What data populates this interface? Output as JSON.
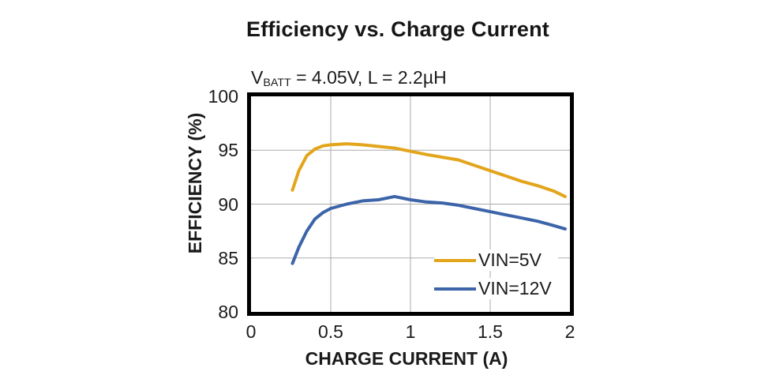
{
  "page": {
    "title": "Efficiency vs. Charge Current",
    "subtitle": {
      "base": "V",
      "sub": "BATT",
      "rest": " = 4.05V, L = 2.2µH"
    }
  },
  "colors": {
    "frame": "#000000",
    "gridline": "#ababab",
    "text": "#1b1b1b",
    "background": "#ffffff"
  },
  "chart_data": {
    "type": "line",
    "title": "Efficiency vs. Charge Current",
    "subtitle": "VBATT = 4.05V, L = 2.2µH",
    "xlabel": "CHARGE CURRENT (A)",
    "ylabel": "EFFICIENCY (%)",
    "xlim": [
      0,
      2
    ],
    "ylim": [
      80,
      100
    ],
    "xticks": {
      "values": [
        0,
        0.5,
        1,
        1.5,
        2
      ],
      "labels": [
        "0",
        "0.5",
        "1",
        "1.5",
        "2"
      ]
    },
    "yticks": {
      "values": [
        80,
        85,
        90,
        95,
        100
      ],
      "labels": [
        "80",
        "85",
        "90",
        "95",
        "100"
      ]
    },
    "grid": true,
    "legend_position": "inside-bottom-right",
    "series": [
      {
        "name": "VIN=5V",
        "color": "#e2a51c",
        "x": [
          0.26,
          0.3,
          0.35,
          0.4,
          0.45,
          0.5,
          0.6,
          0.7,
          0.8,
          0.9,
          1.0,
          1.1,
          1.2,
          1.3,
          1.4,
          1.5,
          1.6,
          1.7,
          1.8,
          1.9,
          1.97
        ],
        "y": [
          91.3,
          93.1,
          94.5,
          95.1,
          95.4,
          95.5,
          95.6,
          95.5,
          95.35,
          95.2,
          94.9,
          94.6,
          94.35,
          94.1,
          93.6,
          93.1,
          92.6,
          92.1,
          91.7,
          91.2,
          90.7
        ]
      },
      {
        "name": "VIN=12V",
        "color": "#3c64a9",
        "x": [
          0.26,
          0.3,
          0.35,
          0.4,
          0.45,
          0.5,
          0.6,
          0.7,
          0.8,
          0.9,
          1.0,
          1.1,
          1.2,
          1.3,
          1.4,
          1.5,
          1.6,
          1.7,
          1.8,
          1.9,
          1.97
        ],
        "y": [
          84.5,
          86.0,
          87.5,
          88.6,
          89.2,
          89.6,
          90.0,
          90.3,
          90.4,
          90.7,
          90.4,
          90.2,
          90.1,
          89.9,
          89.6,
          89.3,
          89.0,
          88.7,
          88.4,
          88.0,
          87.7
        ]
      }
    ]
  }
}
